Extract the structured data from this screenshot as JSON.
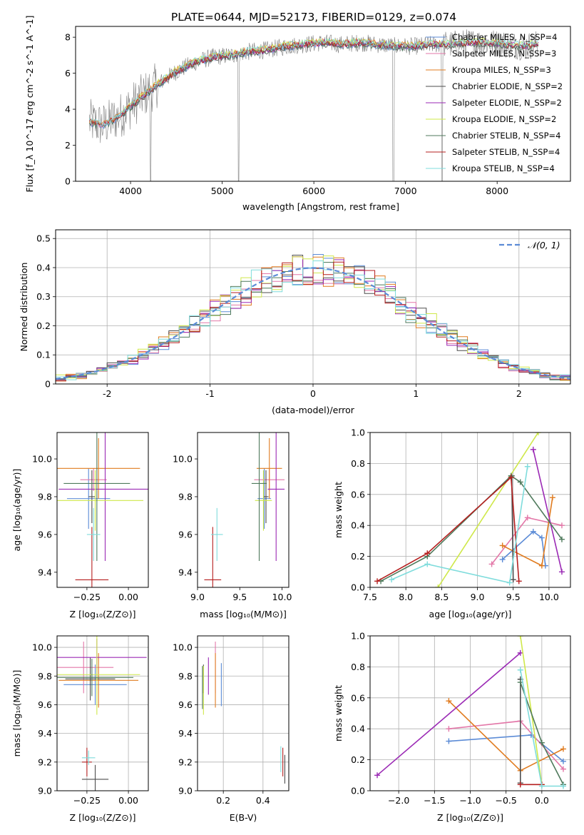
{
  "figure_title": "PLATE=0644, MJD=52173, FIBERID=0129, z=0.074",
  "colors": {
    "Chabrier MILES": "#5b8bd6",
    "Salpeter MILES": "#e377a8",
    "Kroupa MILES": "#e07b1f",
    "Chabrier ELODIE": "#4d4d4d",
    "Salpeter ELODIE": "#9b2ab5",
    "Kroupa ELODIE": "#cfe84a",
    "Chabrier STELIB": "#4f7a5c",
    "Salpeter STELIB": "#b51f1f",
    "Kroupa STELIB": "#7fdcdc",
    "observed": "#808080",
    "gaussian": "#5b8bd6"
  },
  "chart_data": [
    {
      "id": "spectrum",
      "type": "line",
      "title": "PLATE=0644, MJD=52173, FIBERID=0129, z=0.074",
      "xlabel": "wavelength [Angstrom, rest frame]",
      "ylabel": "Flux [f_λ 10^-17 erg cm^-2 s^-1 A^-1]",
      "xlim": [
        3400,
        8800
      ],
      "ylim": [
        0,
        8.6
      ],
      "xticks": [
        4000,
        5000,
        6000,
        7000,
        8000
      ],
      "yticks": [
        0,
        2,
        4,
        6,
        8
      ],
      "grid": false,
      "legend_position": "right",
      "continuum_x": [
        3550,
        3700,
        3900,
        4100,
        4300,
        4500,
        4700,
        4900,
        5100,
        5300,
        5500,
        5700,
        5900,
        6100,
        6300,
        6500,
        6700,
        6900,
        7100,
        7300,
        7500,
        7700,
        7900,
        8100,
        8300,
        8400
      ],
      "continuum_y": [
        3.3,
        3.1,
        3.7,
        4.6,
        5.4,
        6.1,
        6.6,
        6.9,
        7.0,
        7.2,
        7.3,
        7.5,
        7.6,
        7.7,
        7.6,
        7.7,
        7.6,
        7.5,
        7.5,
        7.6,
        7.6,
        7.7,
        7.7,
        7.6,
        7.5,
        7.6
      ],
      "series": [
        {
          "name": "Chabrier MILES, N_SSP=4"
        },
        {
          "name": "Salpeter MILES, N_SSP=3"
        },
        {
          "name": "Kroupa MILES, N_SSP=3"
        },
        {
          "name": "Chabrier ELODIE, N_SSP=2"
        },
        {
          "name": "Salpeter ELODIE, N_SSP=2"
        },
        {
          "name": "Kroupa ELODIE, N_SSP=2"
        },
        {
          "name": "Chabrier STELIB, N_SSP=4"
        },
        {
          "name": "Salpeter STELIB, N_SSP=4"
        },
        {
          "name": "Kroupa STELIB, N_SSP=4"
        }
      ]
    },
    {
      "id": "residuals",
      "type": "line",
      "xlabel": "(data-model)/error",
      "ylabel": "Normed distribution",
      "xlim": [
        -2.5,
        2.5
      ],
      "ylim": [
        0,
        0.53
      ],
      "xticks": [
        -2,
        -1,
        0,
        1,
        2
      ],
      "yticks": [
        0.0,
        0.1,
        0.2,
        0.3,
        0.4,
        0.5
      ],
      "grid": true,
      "legend_position": "top-right",
      "legend": [
        "𝒩(0, 1)"
      ]
    },
    {
      "id": "age_vs_Z",
      "type": "scatter",
      "xlabel": "Z [log10(Z/Z⊙)]",
      "ylabel": "age [log10(age/yr)]",
      "xlim": [
        -0.43,
        0.12
      ],
      "ylim": [
        9.32,
        10.14
      ],
      "xticks": [
        -0.25,
        0.0
      ],
      "xticklabels": [
        "−0.25",
        "0.00"
      ],
      "yticks": [
        9.4,
        9.6,
        9.8,
        10.0
      ],
      "yticklabels": [
        "9.4",
        "9.6",
        "9.8",
        "10.0"
      ],
      "grid": false,
      "points": [
        {
          "series": "Chabrier MILES",
          "x": -0.24,
          "y": 9.79,
          "xerr": 0.13,
          "yerr": 0.16
        },
        {
          "series": "Salpeter MILES",
          "x": -0.21,
          "y": 9.89,
          "xerr": 0.08,
          "yerr": 0.06
        },
        {
          "series": "Kroupa MILES",
          "x": -0.18,
          "y": 9.95,
          "xerr": 0.25,
          "yerr": 0.16
        },
        {
          "series": "Chabrier ELODIE",
          "x": -0.22,
          "y": 9.8,
          "xerr": 0.02,
          "yerr": 0.14
        },
        {
          "series": "Salpeter ELODIE",
          "x": -0.14,
          "y": 9.84,
          "xerr": 0.28,
          "yerr": 0.38
        },
        {
          "series": "Kroupa ELODIE",
          "x": -0.2,
          "y": 9.78,
          "xerr": 0.29,
          "yerr": 0.16
        },
        {
          "series": "Chabrier STELIB",
          "x": -0.19,
          "y": 9.87,
          "xerr": 0.2,
          "yerr": 0.41
        },
        {
          "series": "Salpeter STELIB",
          "x": -0.22,
          "y": 9.36,
          "xerr": 0.1,
          "yerr": 0.28
        },
        {
          "series": "Kroupa STELIB",
          "x": -0.21,
          "y": 9.6,
          "xerr": 0.04,
          "yerr": 0.14
        }
      ]
    },
    {
      "id": "age_vs_mass",
      "type": "scatter",
      "xlabel": "mass [log10(M/M⊙)]",
      "xlim": [
        9.0,
        10.08
      ],
      "ylim": [
        9.32,
        10.14
      ],
      "xticks": [
        9.0,
        9.5,
        10.0
      ],
      "xticklabels": [
        "9.0",
        "9.5",
        "10.0"
      ],
      "yticks": [
        9.4,
        9.6,
        9.8,
        10.0
      ],
      "yticklabels": [
        "9.4",
        "9.6",
        "9.8",
        "10.0"
      ],
      "grid": false,
      "points": [
        {
          "series": "Chabrier MILES",
          "x": 9.79,
          "y": 9.79,
          "xerr": 0.08,
          "yerr": 0.16
        },
        {
          "series": "Salpeter MILES",
          "x": 9.85,
          "y": 9.89,
          "xerr": 0.18,
          "yerr": 0.06
        },
        {
          "series": "Kroupa MILES",
          "x": 9.85,
          "y": 9.95,
          "xerr": 0.15,
          "yerr": 0.16
        },
        {
          "series": "Chabrier ELODIE",
          "x": 9.81,
          "y": 9.8,
          "xerr": 0.03,
          "yerr": 0.14
        },
        {
          "series": "Salpeter ELODIE",
          "x": 9.93,
          "y": 9.84,
          "xerr": 0.1,
          "yerr": 0.38
        },
        {
          "series": "Kroupa ELODIE",
          "x": 9.78,
          "y": 9.78,
          "xerr": 0.1,
          "yerr": 0.16
        },
        {
          "series": "Chabrier STELIB",
          "x": 9.73,
          "y": 9.87,
          "xerr": 0.09,
          "yerr": 0.41
        },
        {
          "series": "Salpeter STELIB",
          "x": 9.18,
          "y": 9.36,
          "xerr": 0.1,
          "yerr": 0.28
        },
        {
          "series": "Kroupa STELIB",
          "x": 9.23,
          "y": 9.6,
          "xerr": 0.07,
          "yerr": 0.14
        }
      ]
    },
    {
      "id": "weight_vs_age",
      "type": "line",
      "xlabel": "age [log10(age/yr)]",
      "ylabel": "mass weight",
      "xlim": [
        7.5,
        10.3
      ],
      "ylim": [
        0.0,
        1.0
      ],
      "xticks": [
        7.5,
        8.0,
        8.5,
        9.0,
        9.5,
        10.0
      ],
      "xticklabels": [
        "7.5",
        "8.0",
        "8.5",
        "9.0",
        "9.5",
        "10.0"
      ],
      "yticks": [
        0.0,
        0.2,
        0.4,
        0.6,
        0.8,
        1.0
      ],
      "yticklabels": [
        "0.0",
        "0.2",
        "0.4",
        "0.6",
        "0.8",
        "1.0"
      ],
      "grid": true,
      "series": [
        {
          "series": "Chabrier MILES",
          "x": [
            9.35,
            9.78,
            9.9,
            9.95
          ],
          "y": [
            0.18,
            0.36,
            0.32,
            0.14
          ]
        },
        {
          "series": "Salpeter MILES",
          "x": [
            9.2,
            9.7,
            10.18
          ],
          "y": [
            0.15,
            0.45,
            0.4
          ]
        },
        {
          "series": "Kroupa MILES",
          "x": [
            9.35,
            9.9,
            10.05
          ],
          "y": [
            0.27,
            0.14,
            0.58
          ]
        },
        {
          "series": "Chabrier ELODIE",
          "x": [
            9.48,
            9.5
          ],
          "y": [
            0.72,
            0.05
          ]
        },
        {
          "series": "Salpeter ELODIE",
          "x": [
            9.78,
            10.18
          ],
          "y": [
            0.89,
            0.1
          ]
        },
        {
          "series": "Kroupa ELODIE",
          "x": [
            8.45,
            9.85
          ],
          "y": [
            0.0,
            1.0
          ]
        },
        {
          "series": "Chabrier STELIB",
          "x": [
            7.65,
            8.3,
            9.47,
            9.6,
            10.18
          ],
          "y": [
            0.04,
            0.2,
            0.72,
            0.68,
            0.31
          ]
        },
        {
          "series": "Salpeter STELIB",
          "x": [
            7.6,
            8.3,
            9.47,
            9.58
          ],
          "y": [
            0.04,
            0.22,
            0.71,
            0.04
          ]
        },
        {
          "series": "Kroupa STELIB",
          "x": [
            7.8,
            8.3,
            9.45,
            9.7
          ],
          "y": [
            0.05,
            0.15,
            0.03,
            0.78
          ]
        }
      ]
    },
    {
      "id": "mass_vs_Z",
      "type": "scatter",
      "xlabel": "Z [log10(Z/Z⊙)]",
      "ylabel": "mass [log10(M/M⊙)]",
      "xlim": [
        -0.43,
        0.12
      ],
      "ylim": [
        9.0,
        10.08
      ],
      "xticks": [
        -0.25,
        0.0
      ],
      "xticklabels": [
        "−0.25",
        "0.00"
      ],
      "yticks": [
        9.0,
        9.2,
        9.4,
        9.6,
        9.8,
        10.0
      ],
      "yticklabels": [
        "9.0",
        "9.2",
        "9.4",
        "9.6",
        "9.8",
        "10.0"
      ],
      "grid": true,
      "points": [
        {
          "series": "Chabrier MILES",
          "x": -0.2,
          "y": 9.74,
          "xerr": 0.19,
          "yerr": 0.14
        },
        {
          "series": "Salpeter MILES",
          "x": -0.27,
          "y": 9.86,
          "xerr": 0.18,
          "yerr": 0.18
        },
        {
          "series": "Kroupa MILES",
          "x": -0.18,
          "y": 9.77,
          "xerr": 0.24,
          "yerr": 0.19
        },
        {
          "series": "Chabrier ELODIE",
          "x": -0.23,
          "y": 9.78,
          "xerr": 0.15,
          "yerr": 0.15
        },
        {
          "series": "Salpeter ELODIE",
          "x": -0.19,
          "y": 9.93,
          "xerr": 0.3,
          "yerr": 0.13
        },
        {
          "series": "Kroupa ELODIE",
          "x": -0.19,
          "y": 9.81,
          "xerr": 0.26,
          "yerr": 0.28
        },
        {
          "series": "Chabrier STELIB",
          "x": -0.22,
          "y": 9.79,
          "xerr": 0.25,
          "yerr": 0.13
        },
        {
          "series": "Salpeter STELIB",
          "x": -0.25,
          "y": 9.2,
          "xerr": 0.03,
          "yerr": 0.1
        },
        {
          "series": "Kroupa STELIB",
          "x": -0.24,
          "y": 9.23,
          "xerr": 0.04,
          "yerr": 0.05
        },
        {
          "series": "Chabrier ELODIE",
          "x": -0.2,
          "y": 9.08,
          "xerr": 0.08,
          "yerr": 0.1
        }
      ]
    },
    {
      "id": "mass_vs_ebv",
      "type": "scatter",
      "xlabel": "E(B-V)",
      "xlim": [
        0.07,
        0.53
      ],
      "ylim": [
        9.0,
        10.08
      ],
      "xticks": [
        0.2,
        0.4
      ],
      "xticklabels": [
        "0.2",
        "0.4"
      ],
      "yticks": [
        9.0,
        9.2,
        9.4,
        9.6,
        9.8,
        10.0
      ],
      "yticklabels": [
        "9.0",
        "9.2",
        "9.4",
        "9.6",
        "9.8",
        "10.0"
      ],
      "grid": true,
      "points": [
        {
          "series": "Chabrier MILES",
          "x": 0.19,
          "y": 9.74,
          "yerr": 0.15
        },
        {
          "series": "Salpeter MILES",
          "x": 0.16,
          "y": 9.86,
          "yerr": 0.18
        },
        {
          "series": "Kroupa MILES",
          "x": 0.16,
          "y": 9.77,
          "yerr": 0.19
        },
        {
          "series": "Chabrier ELODIE",
          "x": 0.1,
          "y": 9.78,
          "yerr": 0.1
        },
        {
          "series": "Salpeter ELODIE",
          "x": 0.125,
          "y": 9.8,
          "yerr": 0.13
        },
        {
          "series": "Kroupa ELODIE",
          "x": 0.1,
          "y": 9.7,
          "yerr": 0.17
        },
        {
          "series": "Chabrier STELIB",
          "x": 0.095,
          "y": 9.72,
          "yerr": 0.15
        },
        {
          "series": "Salpeter STELIB",
          "x": 0.5,
          "y": 9.2,
          "yerr": 0.1
        },
        {
          "series": "Kroupa STELIB",
          "x": 0.49,
          "y": 9.22,
          "yerr": 0.09
        },
        {
          "series": "Chabrier ELODIE",
          "x": 0.51,
          "y": 9.15,
          "yerr": 0.1
        }
      ]
    },
    {
      "id": "weight_vs_Z",
      "type": "line",
      "xlabel": "Z [log10(Z/Z⊙)]",
      "ylabel": "mass weight",
      "xlim": [
        -2.4,
        0.4
      ],
      "ylim": [
        0.0,
        1.0
      ],
      "xticks": [
        -2.0,
        -1.5,
        -1.0,
        -0.5,
        0.0
      ],
      "xticklabels": [
        "−2.0",
        "−1.5",
        "−1.0",
        "−0.5",
        "0.0"
      ],
      "yticks": [
        0.0,
        0.2,
        0.4,
        0.6,
        0.8,
        1.0
      ],
      "yticklabels": [
        "0.0",
        "0.2",
        "0.4",
        "0.6",
        "0.8",
        "1.0"
      ],
      "grid": true,
      "series": [
        {
          "series": "Chabrier MILES",
          "x": [
            -1.3,
            -0.15,
            0.3
          ],
          "y": [
            0.32,
            0.36,
            0.19
          ]
        },
        {
          "series": "Salpeter MILES",
          "x": [
            -1.3,
            -0.3,
            0.3
          ],
          "y": [
            0.4,
            0.45,
            0.14
          ]
        },
        {
          "series": "Kroupa MILES",
          "x": [
            -1.3,
            -0.3,
            0.3
          ],
          "y": [
            0.58,
            0.13,
            0.27
          ]
        },
        {
          "series": "Chabrier ELODIE",
          "x": [
            -0.3,
            -0.3
          ],
          "y": [
            0.72,
            0.05
          ]
        },
        {
          "series": "Salpeter ELODIE",
          "x": [
            -2.3,
            -0.3
          ],
          "y": [
            0.1,
            0.89
          ]
        },
        {
          "series": "Kroupa ELODIE",
          "x": [
            -0.3,
            0.0
          ],
          "y": [
            1.0,
            0.04
          ]
        },
        {
          "series": "Chabrier STELIB",
          "x": [
            -0.3,
            0.0,
            0.3
          ],
          "y": [
            0.7,
            0.31,
            0.04
          ]
        },
        {
          "series": "Salpeter STELIB",
          "x": [
            -0.3,
            0.0
          ],
          "y": [
            0.04,
            0.04
          ]
        },
        {
          "series": "Kroupa STELIB",
          "x": [
            -0.3,
            0.0,
            0.3
          ],
          "y": [
            0.78,
            0.03,
            0.03
          ]
        }
      ]
    }
  ]
}
